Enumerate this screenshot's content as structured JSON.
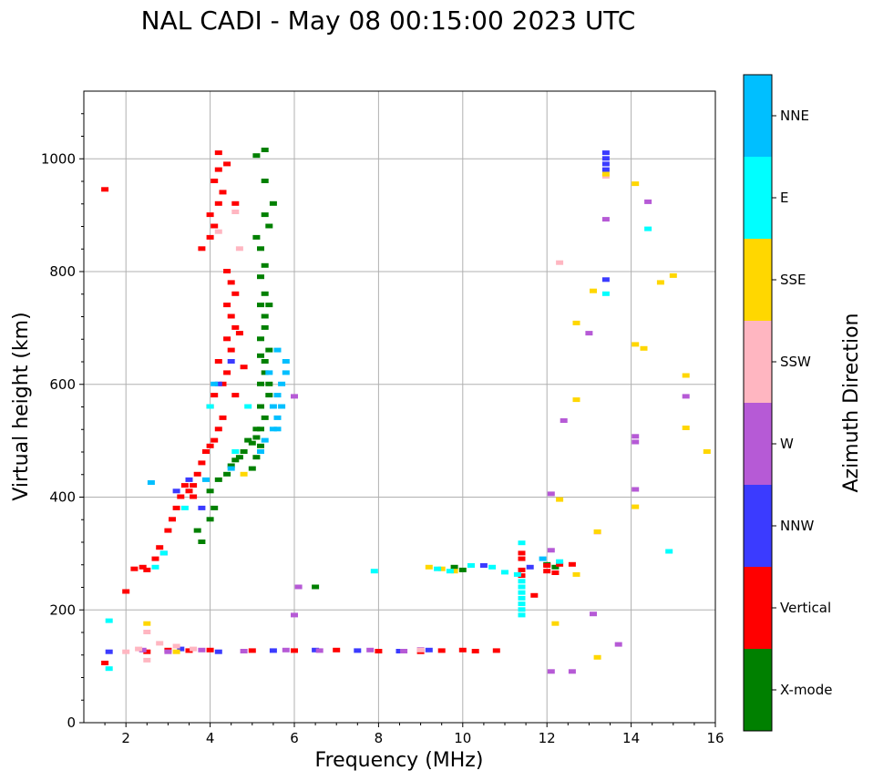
{
  "chart_data": {
    "type": "scatter",
    "title": "NAL CADI - May 08 00:15:00 2023 UTC",
    "xlabel": "Frequency (MHz)",
    "ylabel": "Virtual height (km)",
    "xlim": [
      1,
      16
    ],
    "ylim": [
      0,
      1120
    ],
    "xticks": [
      2,
      4,
      6,
      8,
      10,
      12,
      14,
      16
    ],
    "yticks": [
      0,
      200,
      400,
      600,
      800,
      1000
    ],
    "grid": true,
    "colorbar": {
      "title": "Azimuth Direction",
      "categories": [
        {
          "name": "X-mode",
          "color": "#008000"
        },
        {
          "name": "Vertical",
          "color": "#ff0000"
        },
        {
          "name": "NNW",
          "color": "#3b3bff"
        },
        {
          "name": "W",
          "color": "#b65ad6"
        },
        {
          "name": "SSW",
          "color": "#ffb6c1"
        },
        {
          "name": "SSE",
          "color": "#ffd700"
        },
        {
          "name": "E",
          "color": "#00ffff"
        },
        {
          "name": "NNE",
          "color": "#00bfff"
        }
      ]
    },
    "series": [
      {
        "name": "X-mode",
        "points": [
          [
            4.0,
            360
          ],
          [
            4.1,
            380
          ],
          [
            4.0,
            410
          ],
          [
            4.2,
            430
          ],
          [
            4.4,
            440
          ],
          [
            4.5,
            455
          ],
          [
            4.7,
            470
          ],
          [
            4.8,
            480
          ],
          [
            5.0,
            495
          ],
          [
            5.1,
            505
          ],
          [
            5.2,
            520
          ],
          [
            4.9,
            500
          ],
          [
            4.6,
            465
          ],
          [
            5.3,
            540
          ],
          [
            5.2,
            560
          ],
          [
            5.4,
            580
          ],
          [
            5.2,
            600
          ],
          [
            5.3,
            620
          ],
          [
            5.3,
            640
          ],
          [
            5.4,
            660
          ],
          [
            5.2,
            680
          ],
          [
            5.3,
            700
          ],
          [
            5.3,
            720
          ],
          [
            5.4,
            740
          ],
          [
            5.3,
            760
          ],
          [
            5.2,
            790
          ],
          [
            5.3,
            810
          ],
          [
            5.2,
            840
          ],
          [
            5.1,
            860
          ],
          [
            5.4,
            880
          ],
          [
            5.3,
            900
          ],
          [
            5.5,
            920
          ],
          [
            5.3,
            960
          ],
          [
            5.1,
            1005
          ],
          [
            5.3,
            1015
          ],
          [
            3.7,
            340
          ],
          [
            3.8,
            320
          ],
          [
            6.5,
            240
          ],
          [
            9.8,
            275
          ],
          [
            10.0,
            270
          ],
          [
            12.0,
            280
          ],
          [
            12.2,
            275
          ],
          [
            5.0,
            450
          ],
          [
            5.1,
            470
          ],
          [
            5.2,
            490
          ],
          [
            5.1,
            520
          ],
          [
            5.4,
            600
          ],
          [
            5.2,
            650
          ],
          [
            5.2,
            740
          ]
        ]
      },
      {
        "name": "Vertical",
        "points": [
          [
            1.5,
            105
          ],
          [
            1.5,
            945
          ],
          [
            2.0,
            232
          ],
          [
            2.2,
            272
          ],
          [
            2.4,
            275
          ],
          [
            2.5,
            270
          ],
          [
            2.7,
            290
          ],
          [
            2.8,
            310
          ],
          [
            3.0,
            340
          ],
          [
            3.1,
            360
          ],
          [
            3.2,
            380
          ],
          [
            3.3,
            400
          ],
          [
            3.4,
            420
          ],
          [
            3.5,
            410
          ],
          [
            3.6,
            400
          ],
          [
            3.7,
            440
          ],
          [
            3.8,
            460
          ],
          [
            3.9,
            480
          ],
          [
            4.0,
            490
          ],
          [
            4.1,
            500
          ],
          [
            4.2,
            520
          ],
          [
            4.3,
            540
          ],
          [
            4.0,
            560
          ],
          [
            4.1,
            580
          ],
          [
            4.3,
            600
          ],
          [
            4.4,
            620
          ],
          [
            4.2,
            640
          ],
          [
            4.5,
            660
          ],
          [
            4.4,
            680
          ],
          [
            4.6,
            700
          ],
          [
            4.5,
            720
          ],
          [
            4.4,
            740
          ],
          [
            4.6,
            760
          ],
          [
            4.5,
            780
          ],
          [
            4.4,
            800
          ],
          [
            3.8,
            840
          ],
          [
            4.0,
            860
          ],
          [
            4.1,
            880
          ],
          [
            4.0,
            900
          ],
          [
            4.2,
            920
          ],
          [
            4.3,
            940
          ],
          [
            4.1,
            960
          ],
          [
            4.2,
            980
          ],
          [
            4.2,
            1010
          ],
          [
            4.4,
            990
          ],
          [
            4.6,
            920
          ],
          [
            3.6,
            420
          ],
          [
            4.6,
            580
          ],
          [
            4.8,
            630
          ],
          [
            4.7,
            690
          ],
          [
            2.5,
            125
          ],
          [
            3.0,
            128
          ],
          [
            3.5,
            127
          ],
          [
            4.0,
            128
          ],
          [
            5.0,
            127
          ],
          [
            6.0,
            127
          ],
          [
            7.0,
            128
          ],
          [
            8.0,
            126
          ],
          [
            9.0,
            125
          ],
          [
            9.5,
            127
          ],
          [
            10.0,
            128
          ],
          [
            10.3,
            126
          ],
          [
            10.8,
            127
          ],
          [
            11.4,
            300
          ],
          [
            11.4,
            290
          ],
          [
            11.4,
            270
          ],
          [
            11.4,
            260
          ],
          [
            12.0,
            278
          ],
          [
            12.3,
            280
          ],
          [
            12.6,
            280
          ],
          [
            12.2,
            265
          ],
          [
            11.7,
            225
          ],
          [
            12.0,
            268
          ]
        ]
      },
      {
        "name": "NNW",
        "points": [
          [
            1.6,
            125
          ],
          [
            2.9,
            300
          ],
          [
            3.2,
            410
          ],
          [
            3.5,
            430
          ],
          [
            3.8,
            380
          ],
          [
            4.2,
            600
          ],
          [
            4.5,
            640
          ],
          [
            3.3,
            130
          ],
          [
            4.2,
            125
          ],
          [
            5.5,
            127
          ],
          [
            6.5,
            128
          ],
          [
            7.5,
            127
          ],
          [
            8.5,
            126
          ],
          [
            9.2,
            128
          ],
          [
            13.4,
            1010
          ],
          [
            13.4,
            1000
          ],
          [
            13.4,
            990
          ],
          [
            13.4,
            980
          ],
          [
            13.4,
            785
          ],
          [
            11.6,
            275
          ],
          [
            10.5,
            278
          ]
        ]
      },
      {
        "name": "W",
        "points": [
          [
            2.4,
            128
          ],
          [
            3.0,
            125
          ],
          [
            3.8,
            128
          ],
          [
            4.8,
            126
          ],
          [
            5.8,
            128
          ],
          [
            6.1,
            240
          ],
          [
            6.0,
            578
          ],
          [
            6.0,
            190
          ],
          [
            6.6,
            127
          ],
          [
            7.8,
            128
          ],
          [
            8.6,
            126
          ],
          [
            9.0,
            129
          ],
          [
            12.1,
            405
          ],
          [
            12.1,
            305
          ],
          [
            12.1,
            90
          ],
          [
            12.4,
            535
          ],
          [
            12.6,
            90
          ],
          [
            13.0,
            690
          ],
          [
            13.1,
            192
          ],
          [
            13.4,
            892
          ],
          [
            13.7,
            138
          ],
          [
            14.1,
            507
          ],
          [
            14.1,
            497
          ],
          [
            14.1,
            413
          ],
          [
            14.4,
            923
          ],
          [
            15.3,
            578
          ]
        ]
      },
      {
        "name": "SSW",
        "points": [
          [
            2.0,
            125
          ],
          [
            2.3,
            130
          ],
          [
            2.5,
            160
          ],
          [
            2.5,
            110
          ],
          [
            2.8,
            140
          ],
          [
            3.2,
            135
          ],
          [
            3.6,
            130
          ],
          [
            4.2,
            870
          ],
          [
            4.6,
            905
          ],
          [
            4.7,
            840
          ],
          [
            12.3,
            815
          ],
          [
            9.0,
            128
          ],
          [
            13.4,
            968
          ],
          [
            13.2,
            337
          ]
        ]
      },
      {
        "name": "SSE",
        "points": [
          [
            2.5,
            175
          ],
          [
            3.2,
            125
          ],
          [
            4.8,
            440
          ],
          [
            9.2,
            275
          ],
          [
            9.5,
            272
          ],
          [
            9.8,
            268
          ],
          [
            12.3,
            395
          ],
          [
            12.7,
            708
          ],
          [
            12.7,
            572
          ],
          [
            12.7,
            262
          ],
          [
            12.2,
            175
          ],
          [
            13.1,
            765
          ],
          [
            13.2,
            338
          ],
          [
            13.2,
            115
          ],
          [
            13.4,
            972
          ],
          [
            14.1,
            955
          ],
          [
            14.1,
            670
          ],
          [
            14.1,
            382
          ],
          [
            14.3,
            663
          ],
          [
            14.7,
            780
          ],
          [
            15.0,
            792
          ],
          [
            15.3,
            615
          ],
          [
            15.3,
            522
          ],
          [
            15.8,
            480
          ]
        ]
      },
      {
        "name": "E",
        "points": [
          [
            1.6,
            95
          ],
          [
            1.6,
            180
          ],
          [
            2.7,
            275
          ],
          [
            2.9,
            300
          ],
          [
            3.4,
            380
          ],
          [
            4.0,
            560
          ],
          [
            4.6,
            480
          ],
          [
            4.9,
            560
          ],
          [
            7.9,
            268
          ],
          [
            9.4,
            272
          ],
          [
            9.7,
            268
          ],
          [
            10.2,
            278
          ],
          [
            10.7,
            275
          ],
          [
            11.0,
            266
          ],
          [
            11.3,
            262
          ],
          [
            11.4,
            250
          ],
          [
            11.4,
            240
          ],
          [
            11.4,
            230
          ],
          [
            11.4,
            220
          ],
          [
            11.4,
            210
          ],
          [
            11.4,
            200
          ],
          [
            11.4,
            190
          ],
          [
            11.4,
            318
          ],
          [
            12.3,
            285
          ],
          [
            13.4,
            760
          ],
          [
            14.4,
            875
          ],
          [
            14.9,
            303
          ]
        ]
      },
      {
        "name": "NNE",
        "points": [
          [
            3.9,
            430
          ],
          [
            4.5,
            450
          ],
          [
            5.2,
            480
          ],
          [
            5.3,
            500
          ],
          [
            5.5,
            520
          ],
          [
            5.6,
            540
          ],
          [
            5.7,
            560
          ],
          [
            5.6,
            580
          ],
          [
            5.7,
            600
          ],
          [
            5.8,
            620
          ],
          [
            5.8,
            640
          ],
          [
            5.6,
            660
          ],
          [
            5.4,
            620
          ],
          [
            5.5,
            560
          ],
          [
            5.6,
            520
          ],
          [
            4.1,
            600
          ],
          [
            2.6,
            425
          ],
          [
            11.9,
            290
          ]
        ]
      }
    ]
  }
}
